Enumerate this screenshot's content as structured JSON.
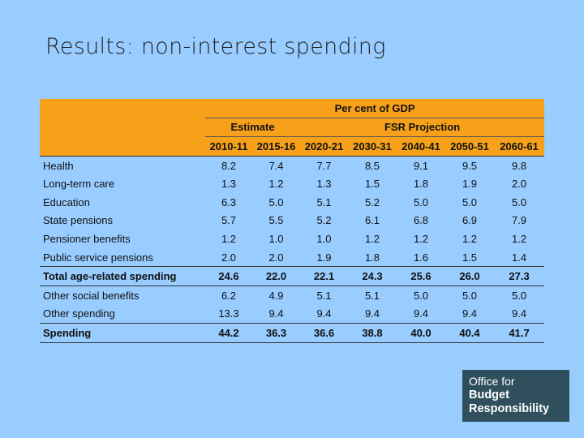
{
  "title": "Results: non-interest spending",
  "table": {
    "super_header": "Per cent of GDP",
    "group_estimate": "Estimate",
    "group_projection": "FSR Projection",
    "years": [
      "2010-11",
      "2015-16",
      "2020-21",
      "2030-31",
      "2040-41",
      "2050-51",
      "2060-61"
    ],
    "rows": [
      {
        "label": "Health",
        "values": [
          "8.2",
          "7.4",
          "7.7",
          "8.5",
          "9.1",
          "9.5",
          "9.8"
        ]
      },
      {
        "label": "Long-term care",
        "values": [
          "1.3",
          "1.2",
          "1.3",
          "1.5",
          "1.8",
          "1.9",
          "2.0"
        ]
      },
      {
        "label": "Education",
        "values": [
          "6.3",
          "5.0",
          "5.1",
          "5.2",
          "5.0",
          "5.0",
          "5.0"
        ]
      },
      {
        "label": "State pensions",
        "values": [
          "5.7",
          "5.5",
          "5.2",
          "6.1",
          "6.8",
          "6.9",
          "7.9"
        ]
      },
      {
        "label": "Pensioner benefits",
        "values": [
          "1.2",
          "1.0",
          "1.0",
          "1.2",
          "1.2",
          "1.2",
          "1.2"
        ]
      },
      {
        "label": "Public service pensions",
        "values": [
          "2.0",
          "2.0",
          "1.9",
          "1.8",
          "1.6",
          "1.5",
          "1.4"
        ]
      },
      {
        "label": "Total age-related spending",
        "values": [
          "24.6",
          "22.0",
          "22.1",
          "24.3",
          "25.6",
          "26.0",
          "27.3"
        ],
        "bold": true
      },
      {
        "label": "Other social benefits",
        "values": [
          "6.2",
          "4.9",
          "5.1",
          "5.1",
          "5.0",
          "5.0",
          "5.0"
        ]
      },
      {
        "label": "Other spending",
        "values": [
          "13.3",
          "9.4",
          "9.4",
          "9.4",
          "9.4",
          "9.4",
          "9.4"
        ]
      },
      {
        "label": "Spending",
        "values": [
          "44.2",
          "36.3",
          "36.6",
          "38.8",
          "40.0",
          "40.4",
          "41.7"
        ],
        "bold": true
      }
    ]
  },
  "logo": {
    "line1": "Office for",
    "line2": "Budget",
    "line3": "Responsibility"
  },
  "colors": {
    "background": "#99ccff",
    "header_orange": "#f7a11a",
    "logo_bg": "#2f4f5c"
  }
}
